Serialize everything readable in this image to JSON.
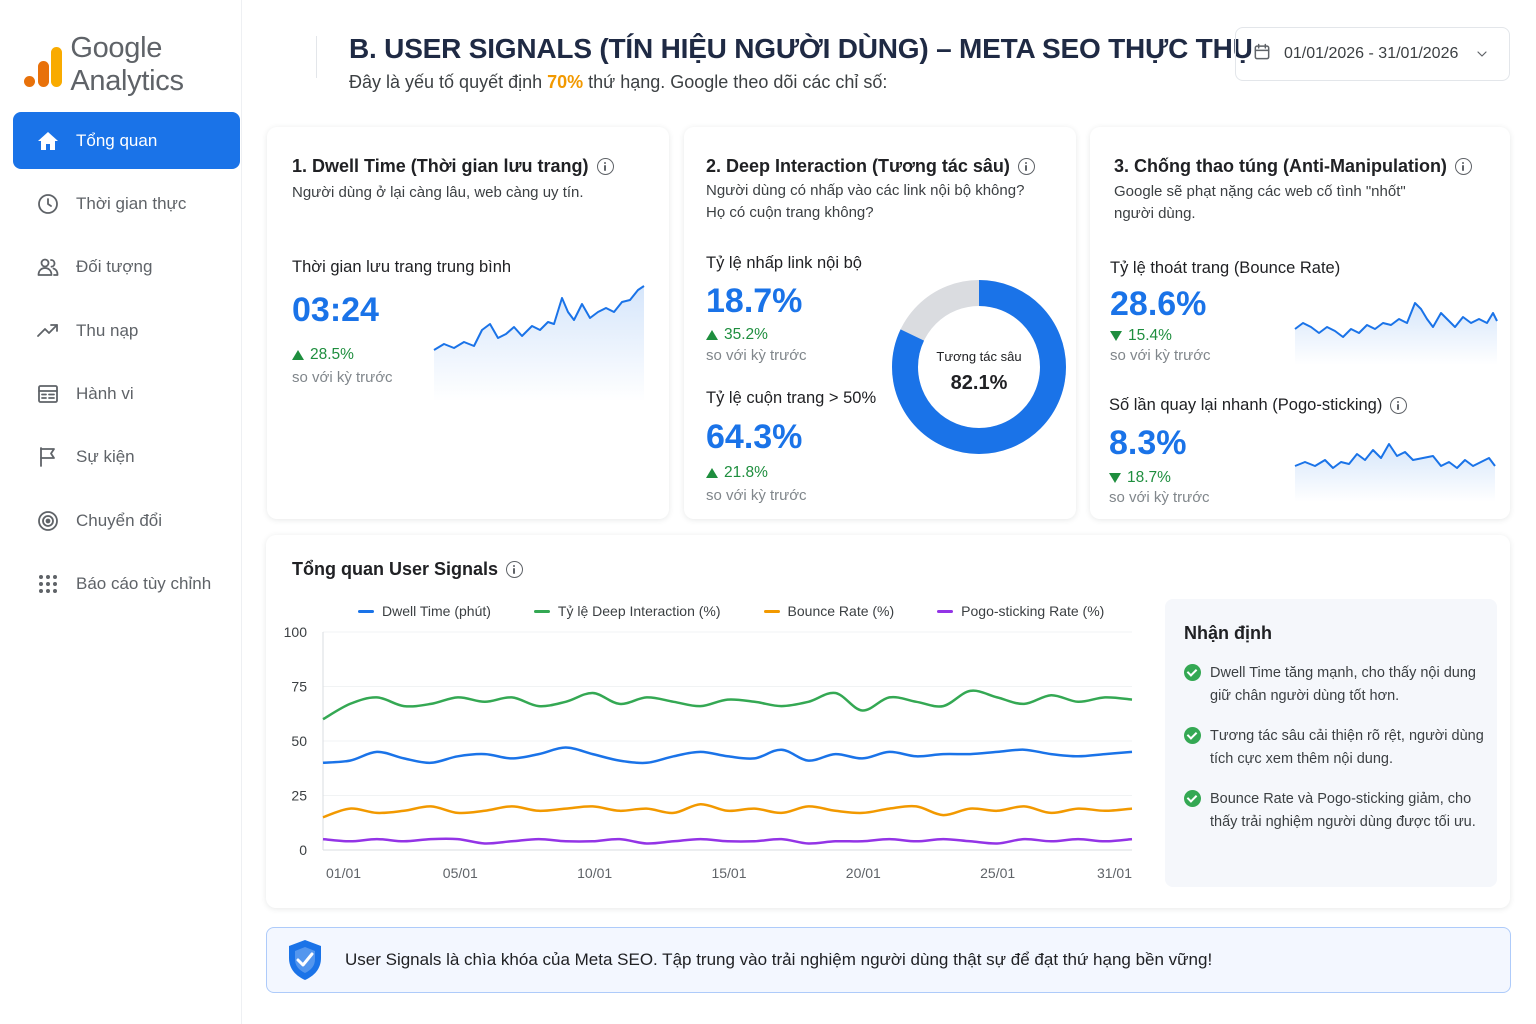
{
  "app": {
    "logo_text": "Google Analytics"
  },
  "sidebar": {
    "items": [
      {
        "label": "Tổng quan",
        "icon": "home-icon",
        "active": true
      },
      {
        "label": "Thời gian thực",
        "icon": "clock-icon"
      },
      {
        "label": "Đối tượng",
        "icon": "users-icon"
      },
      {
        "label": "Thu nạp",
        "icon": "trending-up-icon"
      },
      {
        "label": "Hành vi",
        "icon": "list-panel-icon"
      },
      {
        "label": "Sự kiện",
        "icon": "flag-icon"
      },
      {
        "label": "Chuyển đổi",
        "icon": "target-icon"
      },
      {
        "label": "Báo cáo tùy chỉnh",
        "icon": "grid-icon"
      }
    ]
  },
  "header": {
    "title": "B. USER SIGNALS (TÍN HIỆU NGƯỜI DÙNG) – META SEO THỰC THỤ",
    "subtitle_pre": "Đây là yếu tố quyết định ",
    "subtitle_accent": "70%",
    "subtitle_post": " thứ hạng. Google theo dõi các chỉ số:",
    "date_range": "01/01/2026 - 31/01/2026"
  },
  "cards": {
    "dwell": {
      "title": "1. Dwell Time (Thời gian lưu trang)",
      "desc": "Người dùng ở lại càng lâu, web càng uy tín.",
      "metric_label": "Thời gian lưu trang trung bình",
      "value": "03:24",
      "delta": "28.5%",
      "delta_note": "so với kỳ trước"
    },
    "deep": {
      "title": "2. Deep Interaction (Tương tác sâu)",
      "desc_1": "Người dùng có nhấp vào các link nội bộ không?",
      "desc_2": "Họ có cuộn trang không?",
      "m1_label": "Tỷ lệ nhấp link nội bộ",
      "m1_value": "18.7%",
      "m1_delta": "35.2%",
      "m1_note": "so với kỳ trước",
      "m2_label": "Tỷ lệ cuộn trang > 50%",
      "m2_value": "64.3%",
      "m2_delta": "21.8%",
      "m2_note": "so với kỳ trước",
      "donut_label": "Tương tác sâu",
      "donut_value": "82.1%",
      "donut_fraction": 0.821
    },
    "anti": {
      "title": "3. Chống thao túng (Anti-Manipulation)",
      "desc_1": "Google sẽ phạt nặng các web cố tình \"nhốt\"",
      "desc_2": "người dùng.",
      "m1_label": "Tỷ lệ thoát trang (Bounce Rate)",
      "m1_value": "28.6%",
      "m1_delta": "15.4%",
      "m1_note": "so với kỳ trước",
      "m2_label": "Số lần quay lại nhanh (Pogo-sticking)",
      "m2_value": "8.3%",
      "m2_delta": "18.7%",
      "m2_note": "so với kỳ trước"
    }
  },
  "overview": {
    "title": "Tổng quan User Signals",
    "insight_title": "Nhận định",
    "insights": [
      {
        "l1": "Dwell Time tăng mạnh, cho thấy nội dung",
        "l2": "giữ chân người dùng tốt hơn."
      },
      {
        "l1": "Tương tác sâu cải thiện rõ rệt, người dùng",
        "l2": "tích cực xem thêm nội dung."
      },
      {
        "l1": "Bounce Rate và Pogo-sticking giảm, cho",
        "l2": "thấy trải nghiệm người dùng được tối ưu."
      }
    ]
  },
  "chart_data": {
    "type": "line",
    "title": "Tổng quan User Signals",
    "ylim": [
      0,
      100
    ],
    "y_ticks": [
      "100",
      "75",
      "50",
      "25",
      "0"
    ],
    "x_ticks": [
      "01/01",
      "05/01",
      "10/01",
      "15/01",
      "20/01",
      "25/01",
      "31/01"
    ],
    "legend_position": "top",
    "series": [
      {
        "name": "Dwell Time (phút)",
        "color": "#1a73e8",
        "values": [
          40,
          41,
          45,
          42,
          40,
          43,
          44,
          42,
          44,
          47,
          44,
          41,
          40,
          43,
          45,
          43,
          42,
          46,
          41,
          44,
          42,
          45,
          43,
          44,
          44,
          45,
          46,
          44,
          43,
          44,
          45
        ]
      },
      {
        "name": "Tỷ lệ Deep Interaction (%)",
        "color": "#34a853",
        "values": [
          60,
          67,
          70,
          66,
          67,
          70,
          68,
          70,
          66,
          68,
          72,
          67,
          70,
          68,
          66,
          69,
          68,
          66,
          68,
          72,
          64,
          70,
          68,
          66,
          73,
          70,
          67,
          71,
          68,
          70,
          69
        ]
      },
      {
        "name": "Bounce Rate (%)",
        "color": "#f29900",
        "values": [
          15,
          19,
          17,
          18,
          20,
          17,
          18,
          20,
          18,
          19,
          20,
          18,
          19,
          17,
          21,
          18,
          19,
          17,
          20,
          18,
          17,
          19,
          20,
          16,
          19,
          18,
          20,
          17,
          19,
          18,
          19
        ]
      },
      {
        "name": "Pogo-sticking Rate (%)",
        "color": "#9334e6",
        "values": [
          5,
          4,
          5,
          4,
          5,
          5,
          3,
          4,
          5,
          4,
          4,
          5,
          3,
          4,
          5,
          4,
          4,
          5,
          3,
          4,
          4,
          5,
          4,
          5,
          4,
          3,
          5,
          4,
          5,
          4,
          5
        ]
      }
    ]
  },
  "banner": {
    "text": "User Signals là chìa khóa của Meta SEO. Tập trung vào trải nghiệm người dùng thật sự để đạt thứ hạng bền vững!"
  },
  "colors": {
    "accent": "#1a73e8",
    "positive": "#1e8e3e",
    "highlight": "#f29900"
  }
}
